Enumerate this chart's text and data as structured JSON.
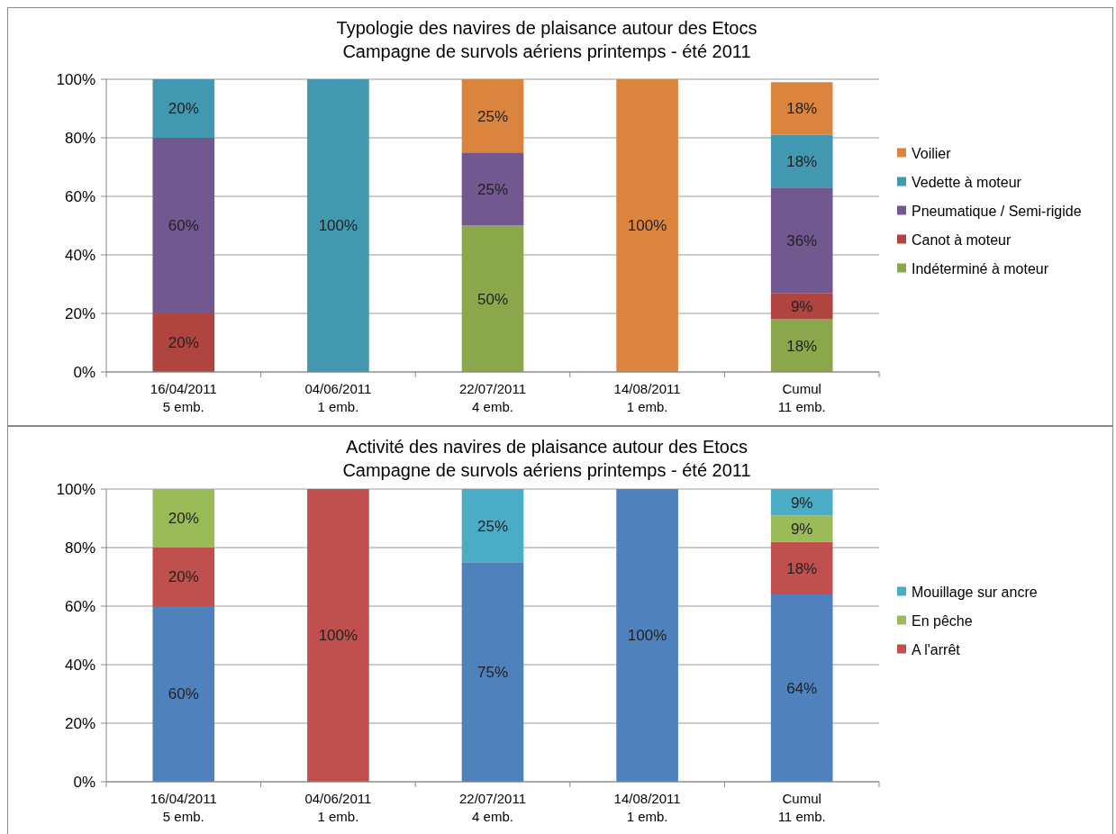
{
  "chart_data": [
    {
      "type": "bar",
      "stacked": true,
      "title": "Typologie des navires de plaisance autour des Etocs",
      "subtitle": "Campagne de survols aériens printemps - été 2011",
      "categories": [
        "16/04/2011\n5 emb.",
        "04/06/2011\n1 emb.",
        "22/07/2011\n4 emb.",
        "14/08/2011\n1 emb.",
        "Cumul\n11 emb."
      ],
      "series": [
        {
          "name": "Indéterminé à moteur",
          "color": "#8aa84b",
          "values": [
            0,
            0,
            50,
            0,
            18
          ],
          "value_labels": [
            null,
            null,
            "50%",
            null,
            "18%"
          ]
        },
        {
          "name": "Canot à moteur",
          "color": "#b0453f",
          "values": [
            20,
            0,
            0,
            0,
            9
          ],
          "value_labels": [
            "20%",
            null,
            null,
            null,
            "9%"
          ]
        },
        {
          "name": "Pneumatique / Semi-rigide",
          "color": "#71588f",
          "values": [
            60,
            0,
            25,
            0,
            36
          ],
          "value_labels": [
            "60%",
            null,
            "25%",
            null,
            "36%"
          ]
        },
        {
          "name": "Vedette à moteur",
          "color": "#4198af",
          "values": [
            20,
            100,
            0,
            0,
            18
          ],
          "value_labels": [
            "20%",
            "100%",
            null,
            null,
            "18%"
          ]
        },
        {
          "name": "Voilier",
          "color": "#db843d",
          "values": [
            0,
            0,
            25,
            100,
            18
          ],
          "value_labels": [
            null,
            null,
            "25%",
            "100%",
            "18%"
          ]
        }
      ],
      "ylim": [
        0,
        100
      ],
      "yticks": [
        {
          "value": 0,
          "label": "0%"
        },
        {
          "value": 20,
          "label": "20%"
        },
        {
          "value": 40,
          "label": "40%"
        },
        {
          "value": 60,
          "label": "60%"
        },
        {
          "value": 80,
          "label": "80%"
        },
        {
          "value": 100,
          "label": "100%"
        }
      ],
      "grid": "y",
      "legend": "right"
    },
    {
      "type": "bar",
      "stacked": true,
      "title": "Activité des navires de plaisance autour des Etocs",
      "subtitle": "Campagne de survols aériens printemps - été 2011",
      "categories": [
        "16/04/2011\n5 emb.",
        "04/06/2011\n1 emb.",
        "22/07/2011\n4 emb.",
        "14/08/2011\n1 emb.",
        "Cumul\n11 emb."
      ],
      "series": [
        {
          "color": "#4f81bd",
          "values": [
            60,
            0,
            75,
            100,
            64
          ],
          "value_labels": [
            "60%",
            null,
            "75%",
            "100%",
            "64%"
          ]
        },
        {
          "name": "A l'arrêt",
          "color": "#c0504d",
          "values": [
            20,
            100,
            0,
            0,
            18
          ],
          "value_labels": [
            "20%",
            "100%",
            null,
            null,
            "18%"
          ]
        },
        {
          "name": "En pêche",
          "color": "#9bbb59",
          "values": [
            20,
            0,
            0,
            0,
            9
          ],
          "value_labels": [
            "20%",
            null,
            null,
            null,
            "9%"
          ]
        },
        {
          "name": "Mouillage sur ancre",
          "color": "#4bacc6",
          "values": [
            0,
            0,
            25,
            0,
            9
          ],
          "value_labels": [
            null,
            null,
            "25%",
            null,
            "9%"
          ]
        }
      ],
      "ylim": [
        0,
        100
      ],
      "yticks": [
        {
          "value": 0,
          "label": "0%"
        },
        {
          "value": 20,
          "label": "20%"
        },
        {
          "value": 40,
          "label": "40%"
        },
        {
          "value": 60,
          "label": "60%"
        },
        {
          "value": 80,
          "label": "80%"
        },
        {
          "value": 100,
          "label": "100%"
        }
      ],
      "grid": "y",
      "legend": "right"
    }
  ]
}
